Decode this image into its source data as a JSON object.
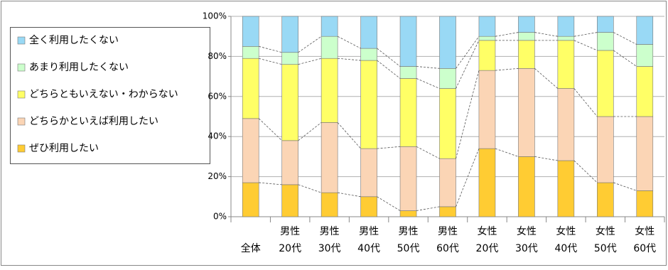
{
  "chart_data": {
    "type": "stacked_bar_percent",
    "categories": [
      [
        "全体"
      ],
      [
        "男性",
        "20代"
      ],
      [
        "男性",
        "30代"
      ],
      [
        "男性",
        "40代"
      ],
      [
        "男性",
        "50代"
      ],
      [
        "男性",
        "60代"
      ],
      [
        "女性",
        "20代"
      ],
      [
        "女性",
        "30代"
      ],
      [
        "女性",
        "40代"
      ],
      [
        "女性",
        "50代"
      ],
      [
        "女性",
        "60代"
      ]
    ],
    "series": [
      {
        "name": "ぜひ利用したい",
        "color": "#ffcc33",
        "values": [
          17,
          16,
          12,
          10,
          3,
          5,
          34,
          30,
          28,
          17,
          13
        ]
      },
      {
        "name": "どちらかといえば利用したい",
        "color": "#fbd5b5",
        "values": [
          32,
          22,
          35,
          24,
          32,
          24,
          39,
          44,
          36,
          33,
          37
        ]
      },
      {
        "name": "どちらともいえない・わからない",
        "color": "#ffff66",
        "values": [
          30,
          38,
          32,
          44,
          34,
          35,
          15,
          14,
          24,
          33,
          25
        ]
      },
      {
        "name": "あまり利用したくない",
        "color": "#ccffcc",
        "values": [
          6,
          6,
          11,
          6,
          6,
          10,
          2,
          4,
          2,
          9,
          11
        ]
      },
      {
        "name": "全く利用したくない",
        "color": "#99d9f5",
        "values": [
          15,
          18,
          10,
          16,
          25,
          26,
          10,
          8,
          10,
          8,
          14
        ]
      }
    ],
    "ylim": [
      0,
      100
    ],
    "yticks": [
      {
        "value": 0,
        "label": "0%"
      },
      {
        "value": 20,
        "label": "20%"
      },
      {
        "value": 40,
        "label": "40%"
      },
      {
        "value": 60,
        "label": "60%"
      },
      {
        "value": 80,
        "label": "80%"
      },
      {
        "value": 100,
        "label": "100%"
      }
    ],
    "grid": true,
    "legend": "left"
  }
}
